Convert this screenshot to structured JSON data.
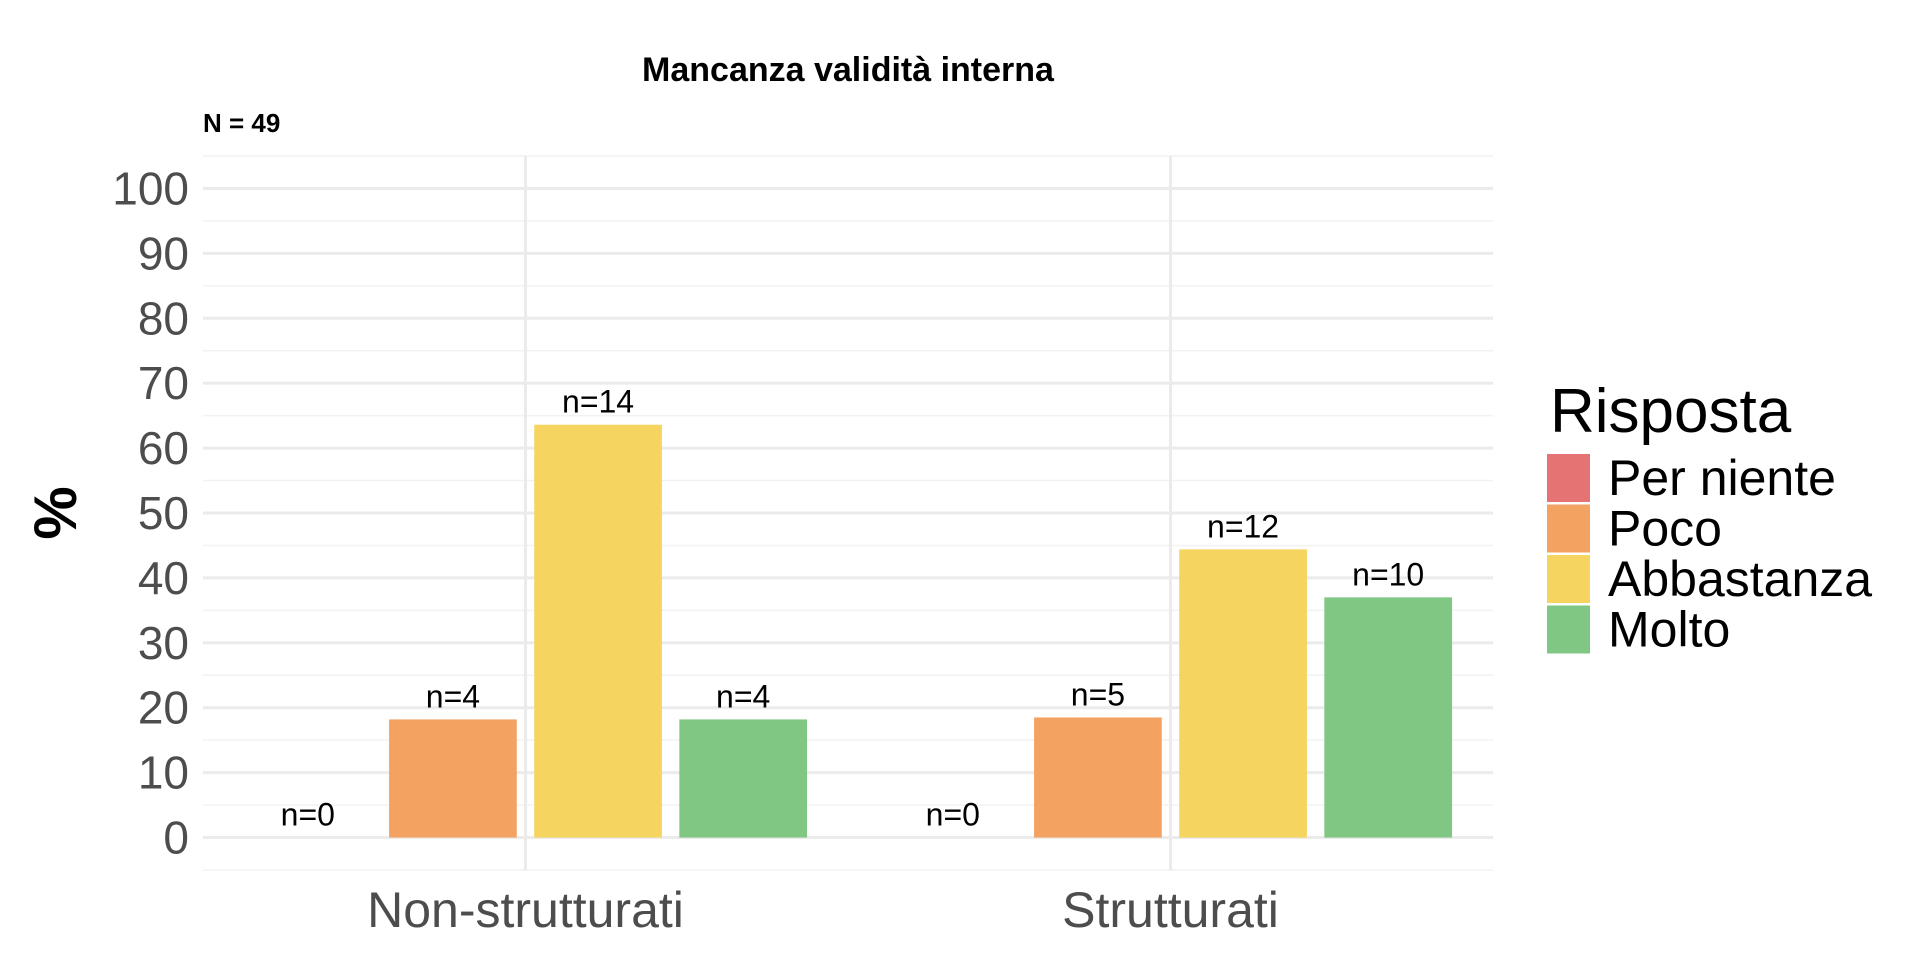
{
  "chart_data": {
    "type": "bar",
    "title": "Mancanza validità interna",
    "subtitle": "N = 49",
    "xlabel": "",
    "ylabel": "%",
    "ylim": [
      -5,
      105
    ],
    "yticks": [
      0,
      10,
      20,
      30,
      40,
      50,
      60,
      70,
      80,
      90,
      100
    ],
    "categories": [
      "Non-strutturati",
      "Strutturati"
    ],
    "grid": true,
    "legend": {
      "title": "Risposta",
      "position": "right"
    },
    "series": [
      {
        "name": "Per niente",
        "color": "#E57373",
        "values": [
          0,
          0
        ],
        "labels": [
          "n=0",
          "n=0"
        ]
      },
      {
        "name": "Poco",
        "color": "#F4A261",
        "values": [
          18.2,
          18.5
        ],
        "labels": [
          "n=4",
          "n=5"
        ]
      },
      {
        "name": "Abbastanza",
        "color": "#F5D55F",
        "values": [
          63.6,
          44.4
        ],
        "labels": [
          "n=14",
          "n=12"
        ]
      },
      {
        "name": "Molto",
        "color": "#81C784",
        "values": [
          18.2,
          37.0
        ],
        "labels": [
          "n=4",
          "n=10"
        ]
      }
    ]
  }
}
